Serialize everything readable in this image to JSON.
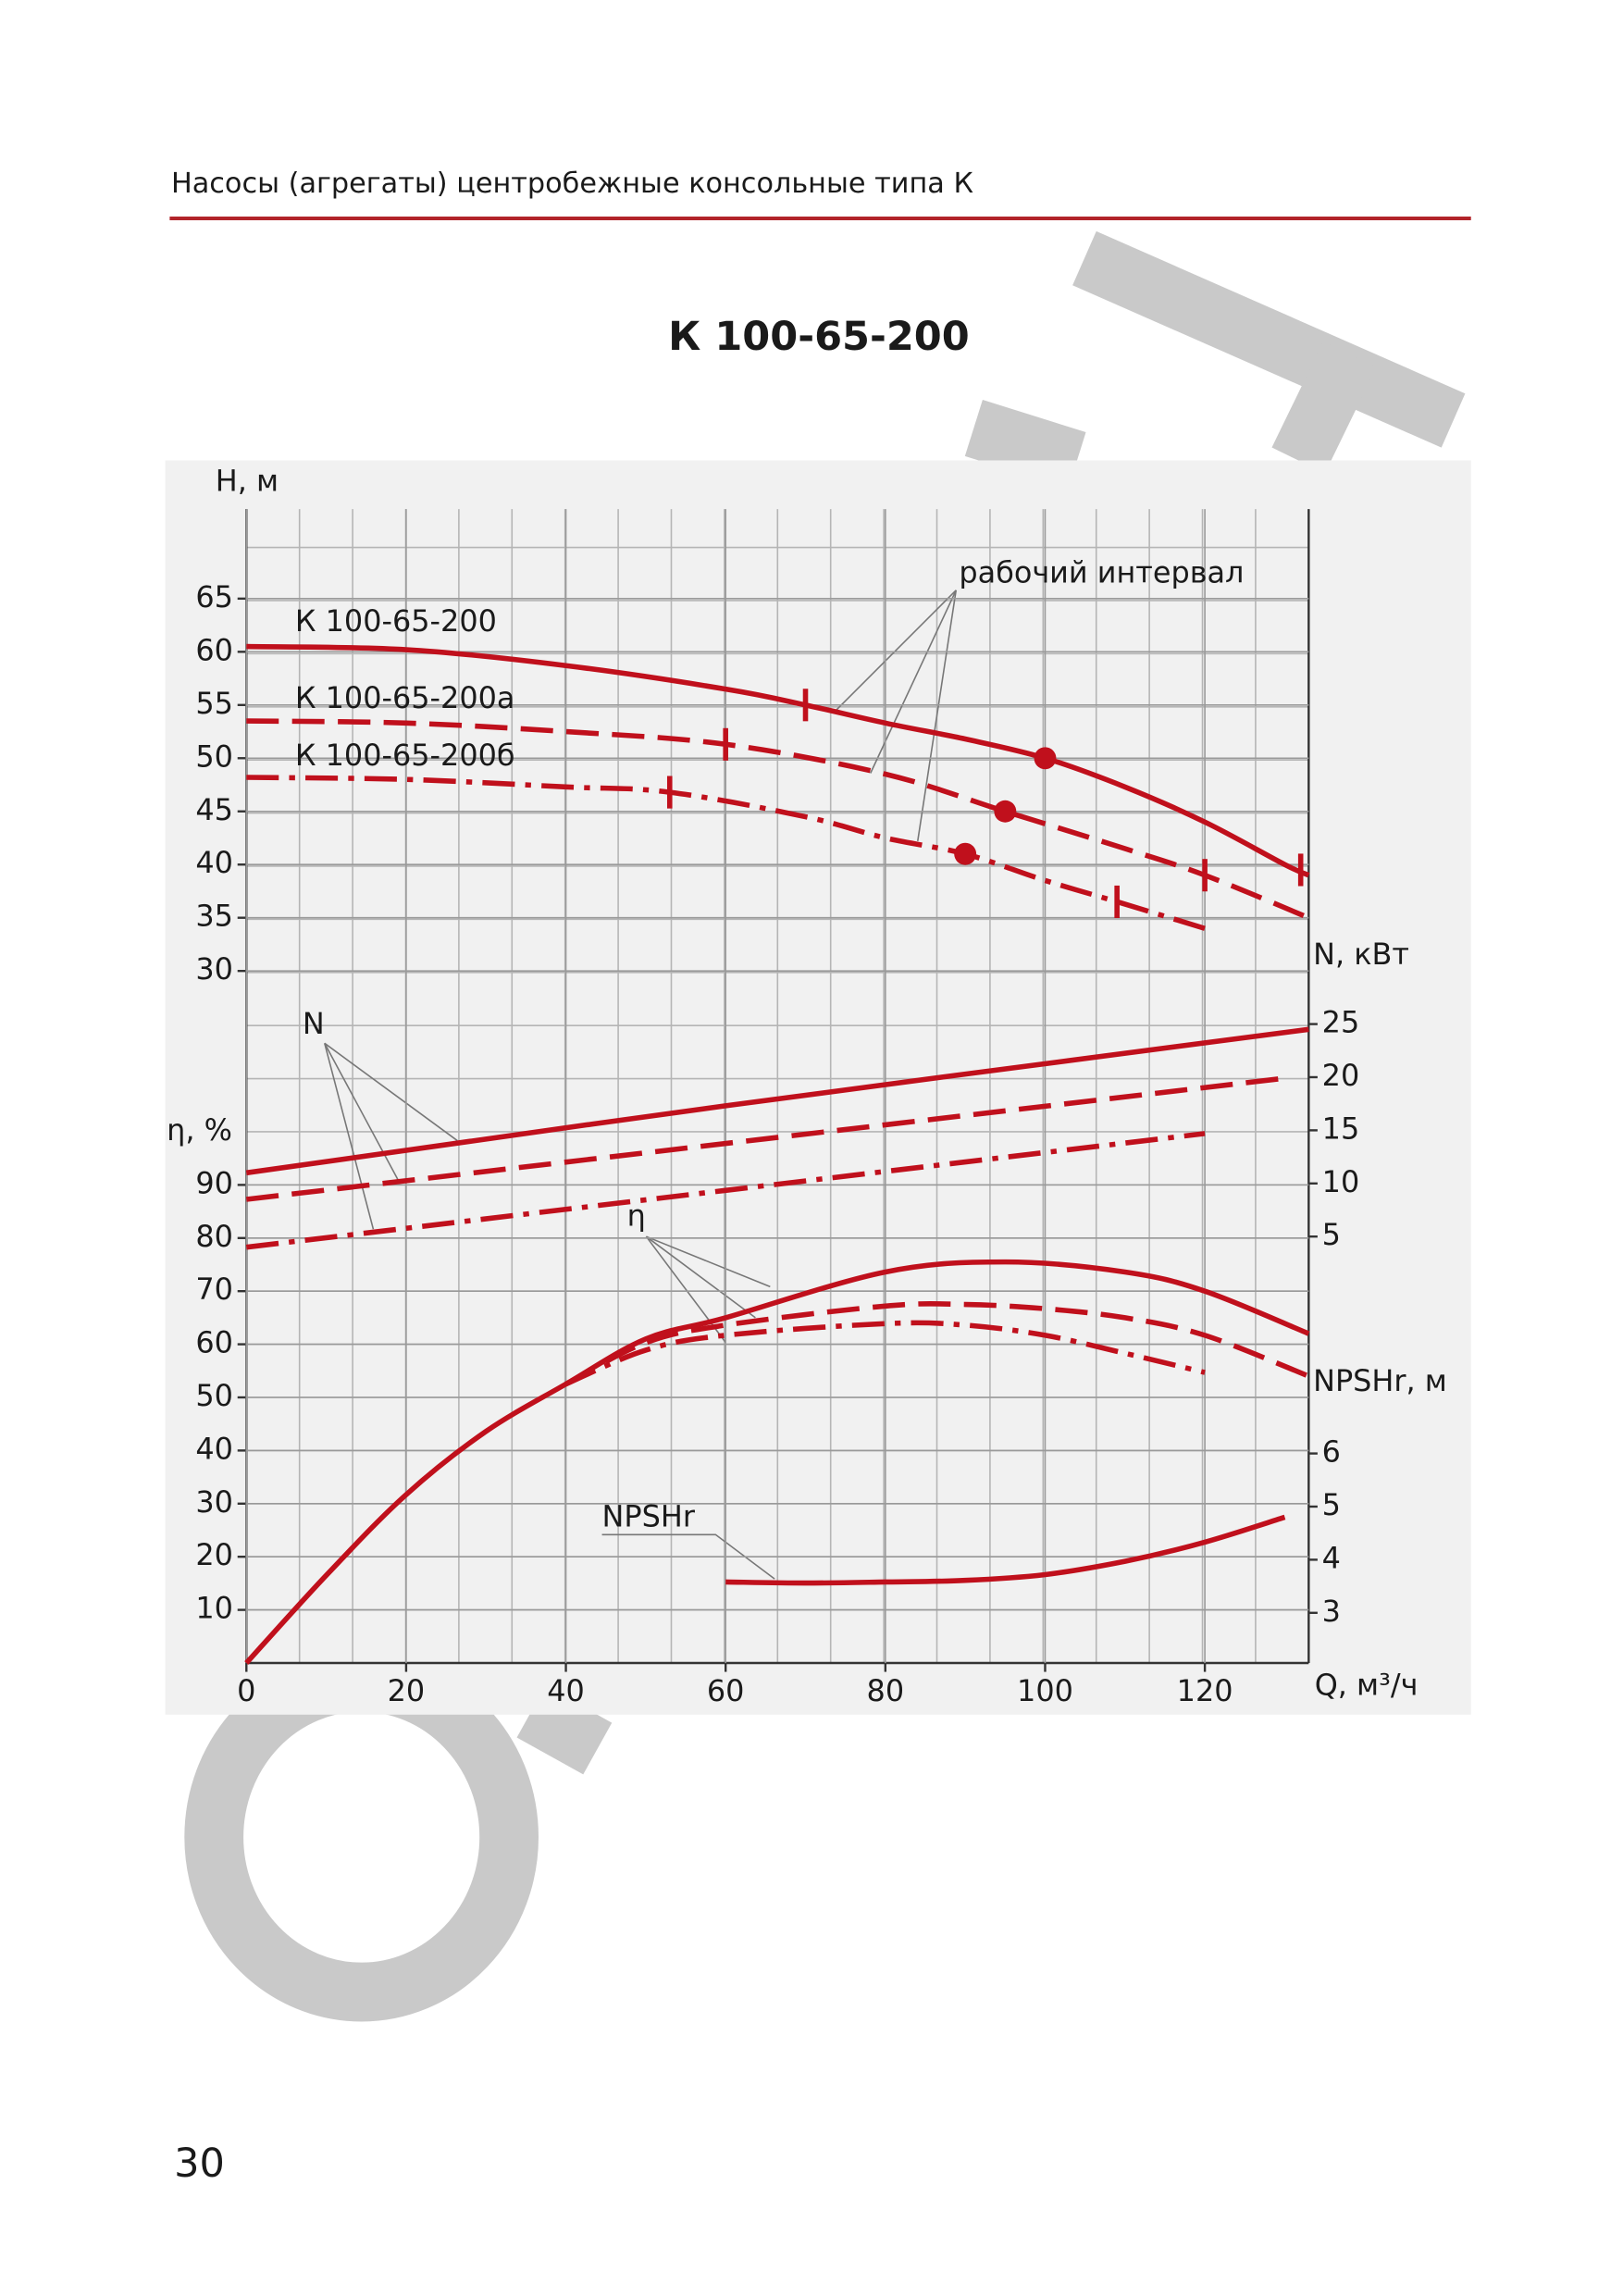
{
  "header": {
    "title": "Насосы (агрегаты) центробежные консольные типа К"
  },
  "page_number": "30",
  "chart_data": {
    "type": "line",
    "title": "К 100-65-200",
    "x_label": "Q, м³/ч",
    "y_label": "H, м",
    "y2_label": "N, кВт",
    "y3_label": "η, %",
    "y4_label": "NPSHr, м",
    "xlim": [
      0,
      133
    ],
    "xticks": [
      0,
      20,
      40,
      60,
      80,
      100,
      120
    ],
    "ylim": [
      30,
      73
    ],
    "yticks": [
      30,
      35,
      40,
      45,
      50,
      55,
      60,
      65
    ],
    "y2lim": [
      0,
      25
    ],
    "y2ticks": [
      5,
      10,
      15,
      20,
      25
    ],
    "y3lim": [
      0,
      90
    ],
    "y3ticks": [
      10,
      20,
      30,
      40,
      50,
      60,
      70,
      80,
      90
    ],
    "y4lim": [
      3,
      6
    ],
    "y4ticks": [
      3,
      4,
      5,
      6
    ],
    "grid": true,
    "color": "#c0101c",
    "annotations": [
      {
        "text": "рабочий интервал"
      },
      {
        "text": "N"
      },
      {
        "text": "η"
      },
      {
        "text": "NPSHr"
      }
    ],
    "series": [
      {
        "name": "К 100-65-200",
        "axis": "y",
        "linestyle": "solid",
        "x": [
          0,
          20,
          40,
          60,
          70,
          80,
          90,
          100,
          110,
          120,
          130,
          133
        ],
        "values": [
          60.5,
          60.2,
          58.7,
          56.5,
          55,
          53.3,
          51.8,
          50,
          47.3,
          44,
          40,
          39
        ],
        "work_x": [
          70,
          132
        ],
        "work_values": [
          55,
          39.5
        ],
        "opt_x": 100,
        "opt_value": 50
      },
      {
        "name": "К 100-65-200а",
        "axis": "y",
        "linestyle": "dashed",
        "x": [
          0,
          20,
          40,
          60,
          80,
          95,
          110,
          120,
          133
        ],
        "values": [
          53.5,
          53.3,
          52.5,
          51.3,
          48.5,
          45,
          41.5,
          39,
          35
        ],
        "work_x": [
          60,
          120
        ],
        "work_values": [
          51.3,
          39
        ],
        "opt_x": 95,
        "opt_value": 45
      },
      {
        "name": "К 100-65-200б",
        "axis": "y",
        "linestyle": "dashdot",
        "x": [
          0,
          20,
          40,
          53,
          70,
          80,
          90,
          100,
          109,
          120
        ],
        "values": [
          48.2,
          48,
          47.3,
          46.8,
          44.5,
          42.5,
          41,
          38.5,
          36.5,
          34
        ],
        "work_x": [
          53,
          109
        ],
        "work_values": [
          46.8,
          36.5
        ],
        "opt_x": 90,
        "opt_value": 41
      },
      {
        "axis": "y2",
        "linestyle": "solid",
        "x": [
          0,
          60,
          133
        ],
        "values": [
          11,
          17.3,
          24.5
        ]
      },
      {
        "axis": "y2",
        "linestyle": "dashed",
        "x": [
          0,
          130
        ],
        "values": [
          8.5,
          19.9
        ]
      },
      {
        "axis": "y2",
        "linestyle": "dashdot",
        "x": [
          0,
          120
        ],
        "values": [
          4,
          14.7
        ]
      },
      {
        "axis": "y3",
        "linestyle": "solid",
        "x": [
          0,
          10,
          20,
          30,
          40,
          50,
          60,
          80,
          95,
          110,
          120,
          133
        ],
        "values": [
          0,
          16.5,
          31.7,
          43.6,
          52.5,
          61,
          65,
          73.6,
          75.5,
          73.6,
          70,
          62
        ]
      },
      {
        "axis": "y3",
        "linestyle": "dashed",
        "x": [
          40,
          50,
          60,
          80,
          90,
          100,
          110,
          120,
          133
        ],
        "values": [
          52.5,
          60.3,
          63.6,
          67.2,
          67.5,
          66.7,
          65,
          61.7,
          54
        ]
      },
      {
        "axis": "y3",
        "linestyle": "dashdot",
        "x": [
          40,
          50,
          60,
          80,
          90,
          100,
          110,
          120
        ],
        "values": [
          52.5,
          58.9,
          61.7,
          63.9,
          63.6,
          61.7,
          58.3,
          54.7
        ]
      },
      {
        "axis": "y4",
        "linestyle": "solid",
        "x": [
          60,
          70,
          80,
          90,
          100,
          110,
          120,
          130
        ],
        "values": [
          3.58,
          3.56,
          3.58,
          3.61,
          3.72,
          3.97,
          4.33,
          4.8
        ]
      }
    ]
  }
}
